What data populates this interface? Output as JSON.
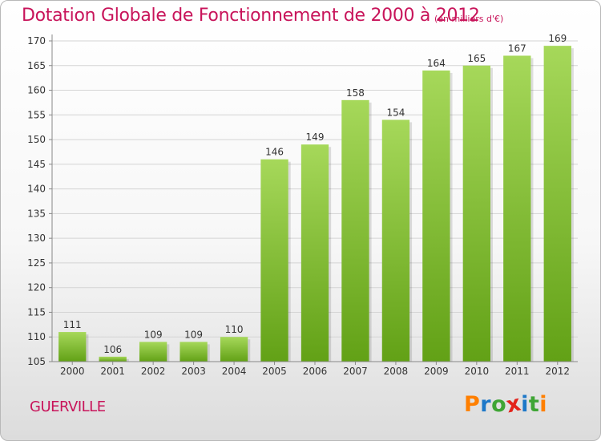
{
  "header": {
    "title": "Dotation Globale de Fonctionnement de 2000 à 2012",
    "unit": "(en milliers d'€)"
  },
  "footer": {
    "town": "GUERVILLE",
    "logo_text": "Proxiti"
  },
  "colors": {
    "accent": "#c8145a",
    "bar_top": "#a6d85a",
    "bar_bottom": "#62a116",
    "logo_letters": [
      "#ff7f00",
      "#1e78c8",
      "#3fa535",
      "#e3221a",
      "#1e78c8",
      "#3fa535",
      "#ff7f00"
    ]
  },
  "chart_data": {
    "type": "bar",
    "categories": [
      "2000",
      "2001",
      "2002",
      "2003",
      "2004",
      "2005",
      "2006",
      "2007",
      "2008",
      "2009",
      "2010",
      "2011",
      "2012"
    ],
    "values": [
      111,
      106,
      109,
      109,
      110,
      146,
      149,
      158,
      154,
      164,
      165,
      167,
      169
    ],
    "ylim": [
      105,
      170
    ],
    "yticks": [
      105,
      110,
      115,
      120,
      125,
      130,
      135,
      140,
      145,
      150,
      155,
      160,
      165,
      170
    ],
    "grid": true
  }
}
